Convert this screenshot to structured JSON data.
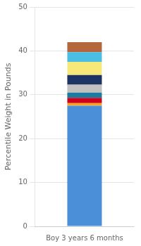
{
  "chart_data": {
    "type": "bar",
    "ylabel": "Percentile Weight in Pounds",
    "categories": [
      "Boy 3 years 6 months"
    ],
    "series": [
      {
        "color": "#4A90D9",
        "values": [
          27.5
        ]
      },
      {
        "color": "#F5A623",
        "values": [
          0.6
        ]
      },
      {
        "color": "#D0021B",
        "values": [
          1.2
        ]
      },
      {
        "color": "#1B7A9E",
        "values": [
          1.2
        ]
      },
      {
        "color": "#C0C0C0",
        "values": [
          1.8
        ]
      },
      {
        "color": "#1C3464",
        "values": [
          2.2
        ]
      },
      {
        "color": "#F8E87A",
        "values": [
          3.0
        ]
      },
      {
        "color": "#4BBEE3",
        "values": [
          2.2
        ]
      },
      {
        "color": "#B5673C",
        "values": [
          2.3
        ]
      }
    ],
    "stacked": true,
    "ylim": [
      0,
      50
    ],
    "yticks": [
      0,
      10,
      20,
      30,
      40,
      50
    ],
    "grid": true
  }
}
